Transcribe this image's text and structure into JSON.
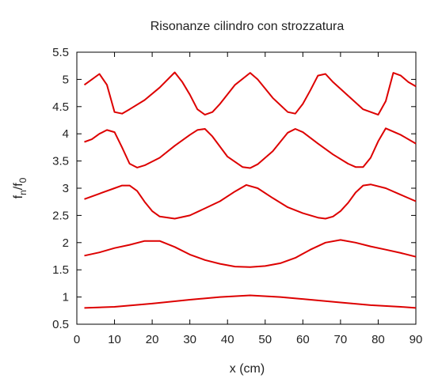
{
  "chart_data": {
    "type": "line",
    "title": "Risonanze cilindro con strozzatura",
    "xlabel": "x (cm)",
    "ylabel_base": "f",
    "ylabel_num_sub": "n",
    "ylabel_sep": "/f",
    "ylabel_den_sub": "0",
    "xlim": [
      0,
      90
    ],
    "ylim": [
      0.5,
      5.5
    ],
    "xticks": [
      0,
      10,
      20,
      30,
      40,
      50,
      60,
      70,
      80,
      90
    ],
    "yticks": [
      0.5,
      1,
      1.5,
      2,
      2.5,
      3,
      3.5,
      4,
      4.5,
      5,
      5.5
    ],
    "xtick_labels": [
      "0",
      "10",
      "20",
      "30",
      "40",
      "50",
      "60",
      "70",
      "80",
      "90"
    ],
    "ytick_labels": [
      "0.5",
      "1",
      "1.5",
      "2",
      "2.5",
      "3",
      "3.5",
      "4",
      "4.5",
      "5",
      "5.5"
    ],
    "line_color": "#dd0000",
    "series": [
      {
        "x": [
          2,
          10,
          20,
          30,
          38,
          46,
          54,
          62,
          70,
          78,
          86,
          90
        ],
        "values": [
          0.8,
          0.82,
          0.88,
          0.95,
          1.0,
          1.03,
          1.0,
          0.95,
          0.9,
          0.85,
          0.82,
          0.8
        ]
      },
      {
        "x": [
          2,
          6,
          10,
          14,
          18,
          22,
          26,
          30,
          34,
          38,
          42,
          46,
          50,
          54,
          58,
          62,
          66,
          70,
          74,
          78,
          82,
          86,
          90
        ],
        "values": [
          1.76,
          1.82,
          1.9,
          1.96,
          2.03,
          2.03,
          1.92,
          1.78,
          1.68,
          1.61,
          1.56,
          1.55,
          1.57,
          1.62,
          1.72,
          1.87,
          2.0,
          2.05,
          2.0,
          1.93,
          1.87,
          1.81,
          1.74
        ]
      },
      {
        "x": [
          2,
          6,
          10,
          12,
          14,
          16,
          18,
          20,
          22,
          26,
          30,
          34,
          38,
          42,
          45,
          48,
          52,
          56,
          60,
          64,
          66,
          68,
          70,
          72,
          74,
          76,
          78,
          82,
          86,
          90
        ],
        "values": [
          2.8,
          2.9,
          3.0,
          3.05,
          3.05,
          2.95,
          2.75,
          2.58,
          2.48,
          2.44,
          2.5,
          2.63,
          2.76,
          2.94,
          3.06,
          3.0,
          2.82,
          2.65,
          2.54,
          2.46,
          2.44,
          2.48,
          2.58,
          2.73,
          2.92,
          3.05,
          3.07,
          3.0,
          2.88,
          2.76
        ]
      },
      {
        "x": [
          2,
          4,
          6,
          8,
          10,
          12,
          14,
          16,
          18,
          22,
          26,
          30,
          32,
          34,
          36,
          40,
          44,
          46,
          48,
          52,
          56,
          58,
          60,
          64,
          68,
          72,
          74,
          76,
          78,
          80,
          82,
          86,
          90
        ],
        "values": [
          3.85,
          3.9,
          4.0,
          4.07,
          4.03,
          3.75,
          3.45,
          3.38,
          3.42,
          3.56,
          3.78,
          3.98,
          4.07,
          4.09,
          3.95,
          3.58,
          3.39,
          3.37,
          3.44,
          3.68,
          4.02,
          4.09,
          4.03,
          3.82,
          3.62,
          3.45,
          3.39,
          3.39,
          3.56,
          3.86,
          4.1,
          3.98,
          3.82
        ]
      },
      {
        "x": [
          2,
          4,
          6,
          8,
          10,
          12,
          14,
          18,
          22,
          26,
          28,
          30,
          32,
          34,
          36,
          38,
          42,
          46,
          48,
          52,
          56,
          58,
          60,
          62,
          64,
          66,
          68,
          72,
          76,
          80,
          82,
          84,
          86,
          88,
          90
        ],
        "values": [
          4.9,
          5.0,
          5.1,
          4.9,
          4.4,
          4.37,
          4.45,
          4.62,
          4.85,
          5.13,
          4.95,
          4.72,
          4.45,
          4.35,
          4.4,
          4.55,
          4.9,
          5.12,
          5.0,
          4.66,
          4.4,
          4.37,
          4.55,
          4.8,
          5.07,
          5.1,
          4.95,
          4.7,
          4.45,
          4.35,
          4.6,
          5.12,
          5.07,
          4.95,
          4.87
        ]
      }
    ]
  }
}
